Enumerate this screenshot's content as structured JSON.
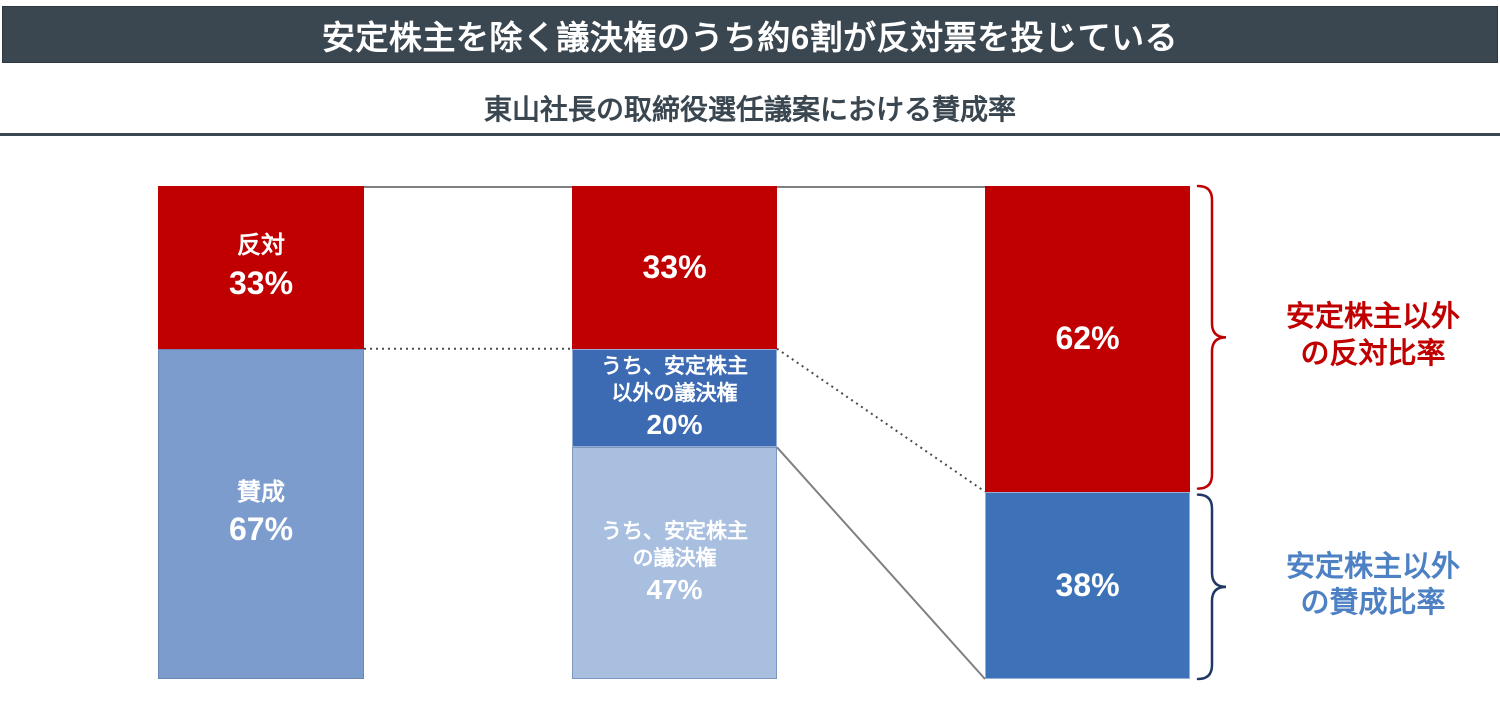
{
  "header": {
    "title": "安定株主を除く議決権のうち約6割が反対票を投じている"
  },
  "subtitle": "東山社長の取締役選任議案における賛成率",
  "palette": {
    "red": "#C00000",
    "light_blue": "#7D9CCE",
    "lighter_blue": "#A9BFE0",
    "mid_blue": "#3D6BB3",
    "blue": "#3E72B8",
    "header_bg": "#3B4750",
    "dark_navy": "#1F3864",
    "blue_label_text": "#4E81C4",
    "connector_solid": "#808080",
    "connector_dotted": "#4A4A4A"
  },
  "chart_data": {
    "type": "bar",
    "subtype": "100-percent-stacked-flow",
    "title": "東山社長の取締役選任議案における賛成率",
    "unit": "%",
    "ylim": [
      0,
      100
    ],
    "grid": false,
    "bars": [
      {
        "name": "all-voting-rights",
        "segments": [
          {
            "label": "反対",
            "value": 33,
            "lines": [
              "反対",
              "33%"
            ],
            "color_key": "red",
            "text_size": "lg",
            "border": "none"
          },
          {
            "label": "賛成",
            "value": 67,
            "lines": [
              "賛成",
              "67%"
            ],
            "color_key": "light_blue",
            "text_size": "lg",
            "border": "dark"
          }
        ]
      },
      {
        "name": "approval-breakdown",
        "segments": [
          {
            "label": "反対",
            "value": 33,
            "lines": [
              "33%"
            ],
            "color_key": "red",
            "text_size": "lg",
            "border": "none"
          },
          {
            "label": "うち、安定株主以外の議決権",
            "value": 20,
            "lines": [
              "うち、安定株主",
              "以外の議決権",
              "20%"
            ],
            "color_key": "mid_blue",
            "text_size": "sm",
            "border": "light"
          },
          {
            "label": "うち、安定株主の議決権",
            "value": 47,
            "lines": [
              "うち、安定株主",
              "の議決権",
              "47%"
            ],
            "color_key": "lighter_blue",
            "text_size": "sm",
            "border": "dark"
          }
        ]
      },
      {
        "name": "excluding-stable-shareholders",
        "segments": [
          {
            "label": "反対",
            "value": 62,
            "lines": [
              "62%"
            ],
            "color_key": "red",
            "text_size": "lg",
            "border": "none"
          },
          {
            "label": "賛成",
            "value": 38,
            "lines": [
              "38%"
            ],
            "color_key": "blue",
            "text_size": "lg",
            "border": "light"
          }
        ]
      }
    ],
    "connectors": [
      {
        "style": "solid",
        "from_bar": 0,
        "from_at": 0,
        "to_bar": 1,
        "to_at": 0
      },
      {
        "style": "solid",
        "from_bar": 1,
        "from_at": 0,
        "to_bar": 2,
        "to_at": 0
      },
      {
        "style": "dotted",
        "from_bar": 0,
        "from_at": 33,
        "to_bar": 1,
        "to_at": 33
      },
      {
        "style": "dotted",
        "from_bar": 1,
        "from_at": 33,
        "to_bar": 2,
        "to_at": 62
      },
      {
        "style": "solid",
        "from_bar": 1,
        "from_at": 53,
        "to_bar": 2,
        "to_at": 100
      }
    ],
    "braces": [
      {
        "from_at": 0,
        "to_at": 62,
        "brace_color": "#C00000",
        "label_color": "#C00000",
        "label_lines": [
          "安定株主以外",
          "の反対比率"
        ]
      },
      {
        "from_at": 62,
        "to_at": 100,
        "brace_color": "#1F3864",
        "label_color": "#4E81C4",
        "label_lines": [
          "安定株主以外",
          "の賛成比率"
        ]
      }
    ]
  }
}
